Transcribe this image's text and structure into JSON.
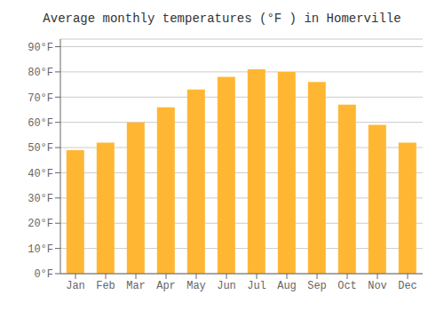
{
  "chart_data": {
    "type": "bar",
    "title": "Average monthly temperatures (°F ) in Homerville",
    "categories": [
      "Jan",
      "Feb",
      "Mar",
      "Apr",
      "May",
      "Jun",
      "Jul",
      "Aug",
      "Sep",
      "Oct",
      "Nov",
      "Dec"
    ],
    "values": [
      49,
      52,
      60,
      66,
      73,
      78,
      81,
      80,
      76,
      67,
      59,
      52
    ],
    "color": "#FFB733",
    "ylim": [
      0,
      93
    ],
    "yticks": [
      {
        "value": 0,
        "label": "0°F"
      },
      {
        "value": 10,
        "label": "10°F"
      },
      {
        "value": 20,
        "label": "20°F"
      },
      {
        "value": 30,
        "label": "30°F"
      },
      {
        "value": 40,
        "label": "40°F"
      },
      {
        "value": 50,
        "label": "50°F"
      },
      {
        "value": 60,
        "label": "60°F"
      },
      {
        "value": 70,
        "label": "70°F"
      },
      {
        "value": 80,
        "label": "80°F"
      },
      {
        "value": 90,
        "label": "90°F"
      }
    ],
    "grid": true
  }
}
